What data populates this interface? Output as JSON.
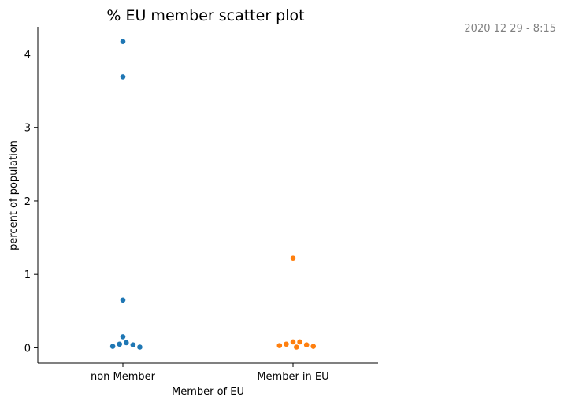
{
  "timestamp": "2020 12 29 - 8:15",
  "chart_data": {
    "type": "scatter",
    "title": "% EU member scatter plot",
    "xlabel": "Member of EU",
    "ylabel": "percent of population",
    "categories": [
      "non Member",
      "Member in EU"
    ],
    "ylim": [
      -0.21,
      4.37
    ],
    "yticks": [
      0,
      1,
      2,
      3,
      4
    ],
    "grid": false,
    "colors": [
      "#1f77b4",
      "#ff7f0e"
    ],
    "series": [
      {
        "category": "non Member",
        "values": [
          4.17,
          3.69,
          0.65,
          0.15,
          0.07,
          0.05,
          0.04,
          0.02,
          0.01
        ]
      },
      {
        "category": "Member in EU",
        "values": [
          1.22,
          0.08,
          0.08,
          0.05,
          0.04,
          0.03,
          0.02,
          0.01
        ]
      }
    ]
  }
}
